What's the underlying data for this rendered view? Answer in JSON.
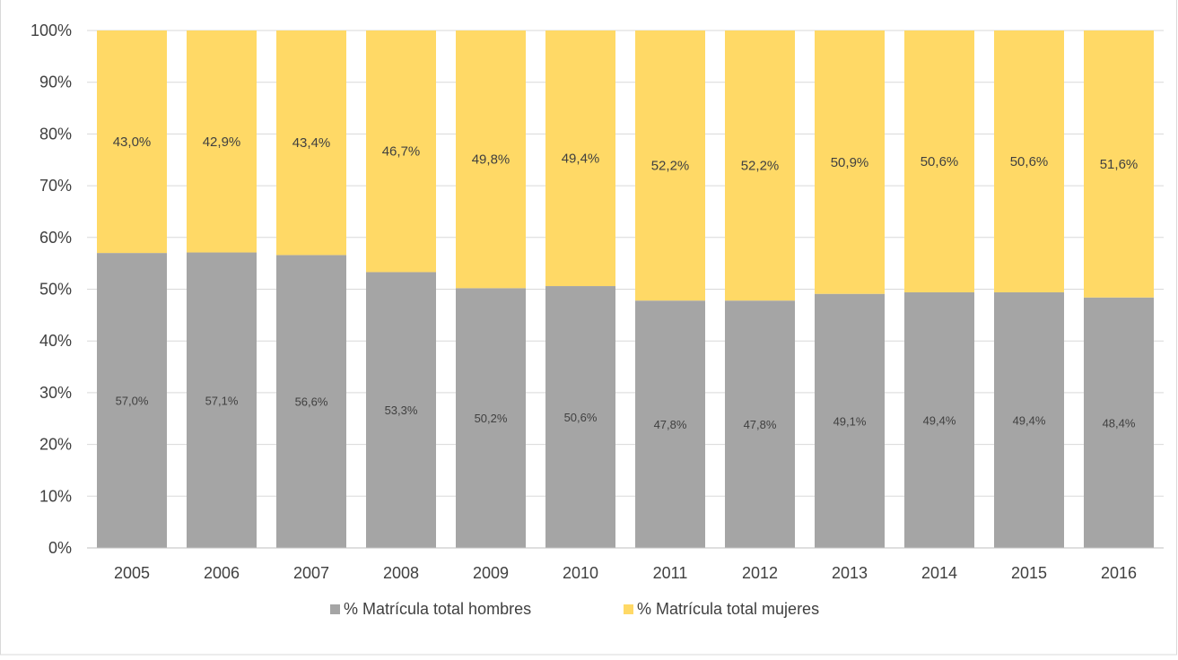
{
  "chart_data": {
    "type": "bar",
    "stacked": true,
    "percent_stacked": true,
    "categories": [
      "2005",
      "2006",
      "2007",
      "2008",
      "2009",
      "2010",
      "2011",
      "2012",
      "2013",
      "2014",
      "2015",
      "2016"
    ],
    "series": [
      {
        "name": "% Matrícula total hombres",
        "color": "#a5a5a5",
        "values": [
          57.0,
          57.1,
          56.6,
          53.3,
          50.2,
          50.6,
          47.8,
          47.8,
          49.1,
          49.4,
          49.4,
          48.4
        ],
        "labels": [
          "57,0%",
          "57,1%",
          "56,6%",
          "53,3%",
          "50,2%",
          "50,6%",
          "47,8%",
          "47,8%",
          "49,1%",
          "49,4%",
          "49,4%",
          "48,4%"
        ]
      },
      {
        "name": "% Matrícula total mujeres",
        "color": "#ffd966",
        "values": [
          43.0,
          42.9,
          43.4,
          46.7,
          49.8,
          49.4,
          52.2,
          52.2,
          50.9,
          50.6,
          50.6,
          51.6
        ],
        "labels": [
          "43,0%",
          "42,9%",
          "43,4%",
          "46,7%",
          "49,8%",
          "49,4%",
          "52,2%",
          "52,2%",
          "50,9%",
          "50,6%",
          "50,6%",
          "51,6%"
        ]
      }
    ],
    "y_ticks": [
      "0%",
      "10%",
      "20%",
      "30%",
      "40%",
      "50%",
      "60%",
      "70%",
      "80%",
      "90%",
      "100%"
    ],
    "ylim": [
      0,
      100
    ],
    "grid": true,
    "legend_position": "bottom",
    "colors": {
      "gridline": "#d9d9d9",
      "axis": "#bfbfbf",
      "text": "#404040"
    }
  }
}
